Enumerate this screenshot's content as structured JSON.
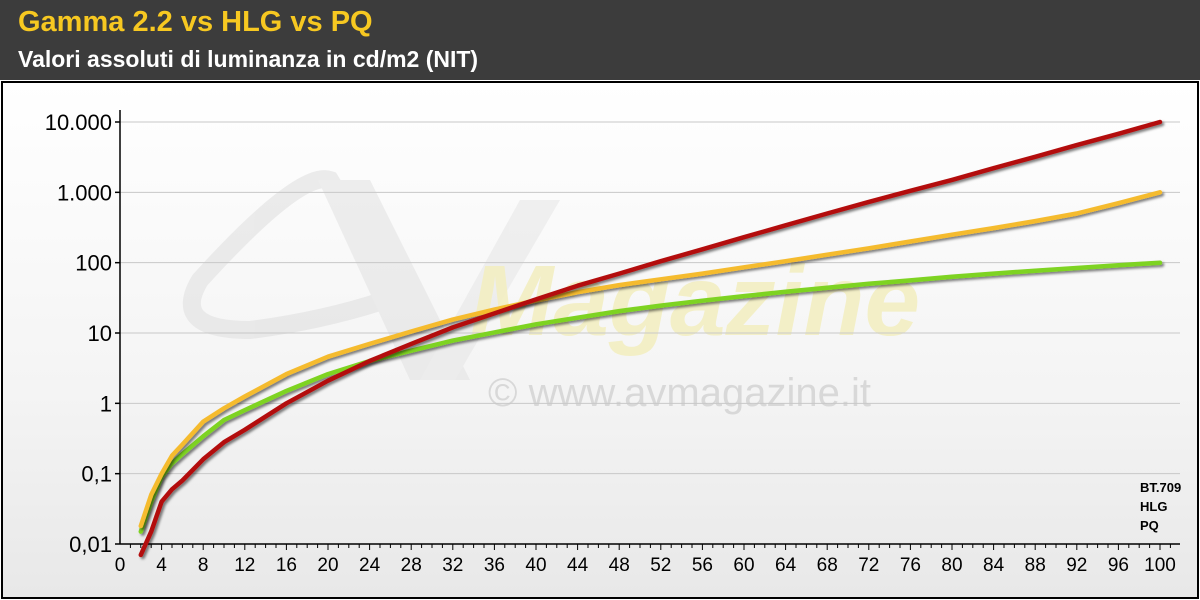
{
  "header": {
    "title": "Gamma 2.2 vs HLG vs PQ",
    "subtitle": "Valori assoluti di luminanza in cd/m2 (NIT)"
  },
  "watermark": {
    "brand_text": "Magazine",
    "copyright_text": "© www.avmagazine.it",
    "logo_icon": "av-logo-icon"
  },
  "colors": {
    "header_bg": "#3c3c3c",
    "title": "#f7c821",
    "bt709": "#7ed321",
    "hlg": "#f5bb2e",
    "pq": "#b30f0f"
  },
  "chart_data": {
    "type": "line",
    "y_scale": "log",
    "ylim": [
      0.01,
      10000
    ],
    "xlim": [
      0,
      100
    ],
    "grid": true,
    "legend_position": "bottom-right",
    "y_tick_labels": [
      "0,01",
      "0,1",
      "1",
      "10",
      "100",
      "1.000",
      "10.000"
    ],
    "y_tick_values": [
      0.01,
      0.1,
      1,
      10,
      100,
      1000,
      10000
    ],
    "x_ticks": [
      0,
      4,
      8,
      12,
      16,
      20,
      24,
      28,
      32,
      36,
      40,
      44,
      48,
      52,
      56,
      60,
      64,
      68,
      72,
      76,
      80,
      84,
      88,
      92,
      96,
      100
    ],
    "series": [
      {
        "name": "BT.709",
        "color": "#7ed321",
        "x": [
          2,
          3,
          4,
          5,
          6,
          8,
          10,
          12,
          16,
          20,
          24,
          28,
          32,
          36,
          40,
          44,
          48,
          52,
          56,
          60,
          64,
          68,
          72,
          76,
          80,
          84,
          88,
          92,
          96,
          100
        ],
        "y": [
          0.015,
          0.04,
          0.09,
          0.14,
          0.19,
          0.34,
          0.58,
          0.8,
          1.5,
          2.6,
          4.0,
          5.6,
          7.8,
          10.2,
          13.3,
          16.5,
          20.5,
          24.5,
          28.8,
          33.5,
          38.5,
          44,
          50,
          56,
          63,
          70,
          77,
          84,
          92,
          100
        ]
      },
      {
        "name": "HLG",
        "color": "#f5bb2e",
        "x": [
          2,
          3,
          4,
          5,
          6,
          8,
          10,
          12,
          16,
          20,
          24,
          28,
          32,
          36,
          40,
          44,
          48,
          52,
          56,
          60,
          64,
          68,
          72,
          76,
          80,
          84,
          88,
          92,
          96,
          100
        ],
        "y": [
          0.018,
          0.05,
          0.1,
          0.18,
          0.26,
          0.55,
          0.85,
          1.25,
          2.6,
          4.6,
          7.0,
          10.5,
          15.5,
          21.5,
          29,
          38,
          48,
          58,
          70,
          86,
          105,
          130,
          160,
          200,
          250,
          310,
          390,
          500,
          700,
          1000
        ]
      },
      {
        "name": "PQ",
        "color": "#b30f0f",
        "x": [
          2,
          3,
          4,
          5,
          6,
          8,
          10,
          12,
          16,
          20,
          24,
          28,
          32,
          36,
          40,
          44,
          48,
          52,
          56,
          60,
          64,
          68,
          72,
          76,
          80,
          84,
          88,
          92,
          96,
          100
        ],
        "y": [
          0.007,
          0.015,
          0.04,
          0.06,
          0.08,
          0.16,
          0.28,
          0.42,
          1.0,
          2.1,
          4.0,
          7.0,
          12,
          19,
          30,
          47,
          70,
          105,
          155,
          230,
          340,
          500,
          730,
          1050,
          1500,
          2200,
          3200,
          4700,
          6800,
          10000
        ]
      }
    ]
  }
}
